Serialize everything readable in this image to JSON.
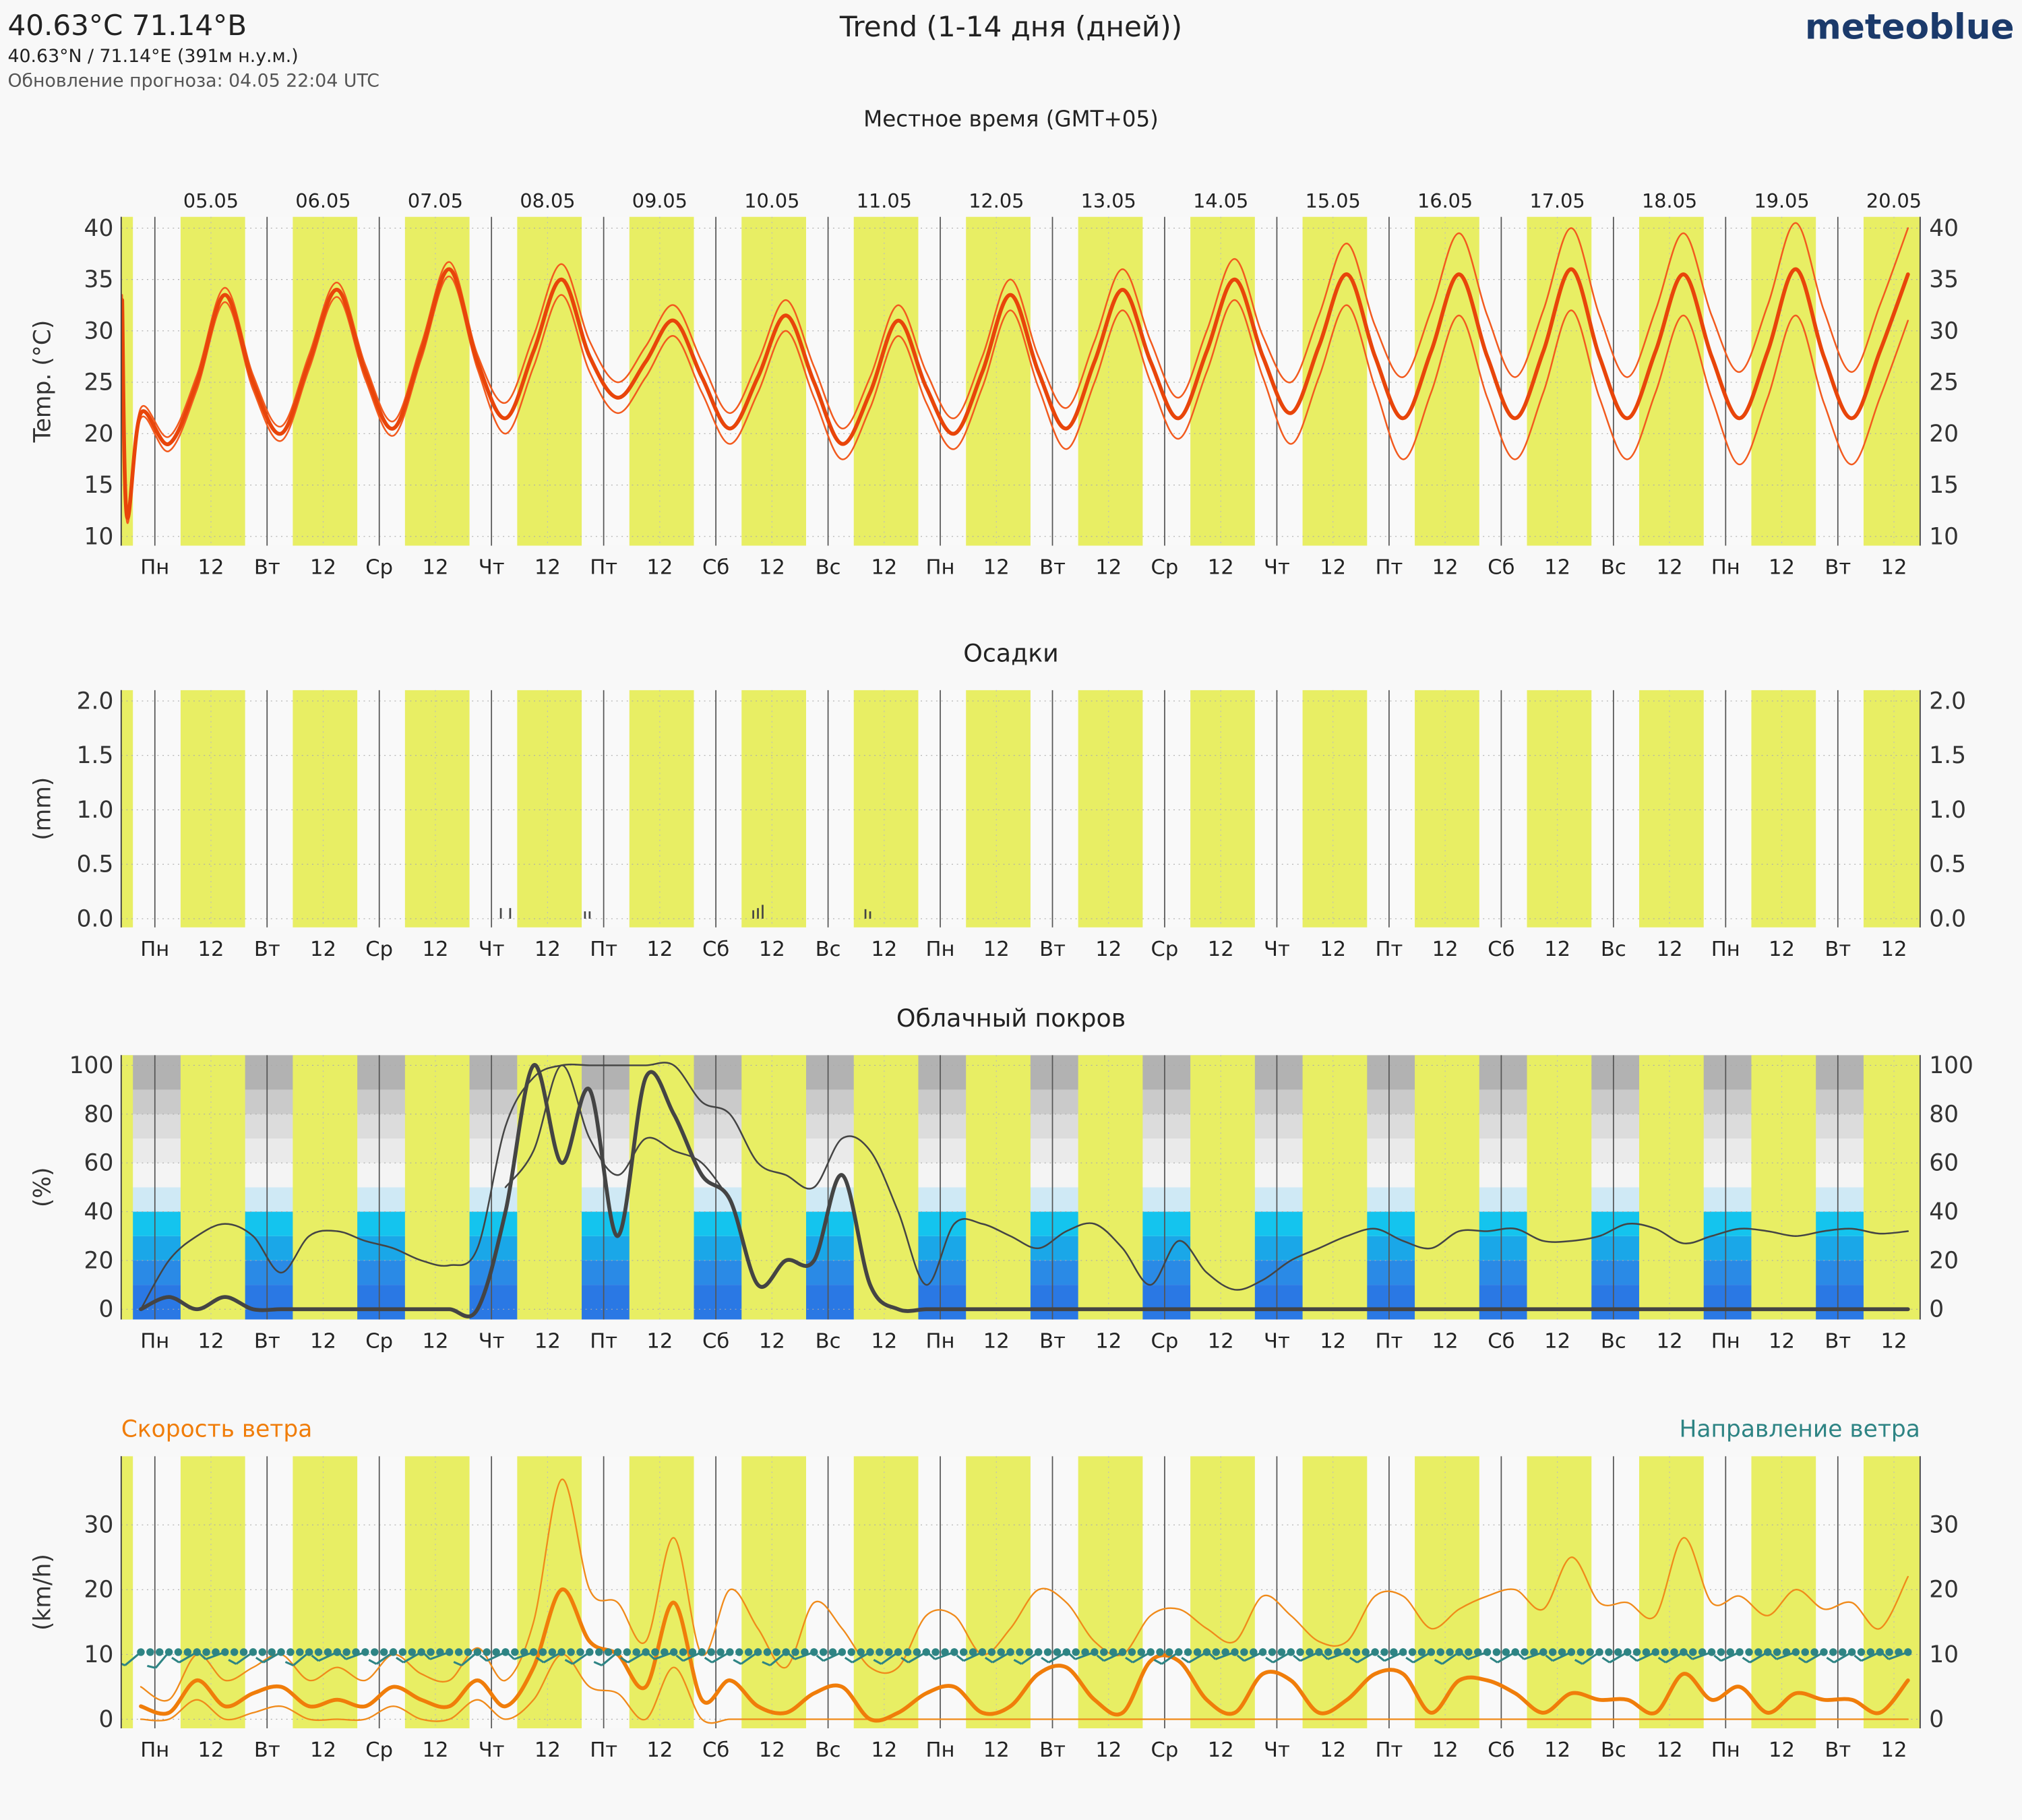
{
  "header": {
    "location": "40.63°C 71.14°B",
    "coords": "40.63°N / 71.14°E (391м н.у.м.)",
    "update": "Обновление прогноза: 04.05 22:04 UTC",
    "title": "Trend (1-14 дня (дней))",
    "brand": "meteoblue"
  },
  "time_axis": {
    "label": "Местное время (GMT+05)",
    "xlim": [
      -7.2,
      377.6
    ],
    "daylight": [
      5.5,
      19.3
    ],
    "day_ticks": [
      {
        "value": 0,
        "label": "Пн"
      },
      {
        "value": 24,
        "label": "Вт"
      },
      {
        "value": 48,
        "label": "Ср"
      },
      {
        "value": 72,
        "label": "Чт"
      },
      {
        "value": 96,
        "label": "Пт"
      },
      {
        "value": 120,
        "label": "Сб"
      },
      {
        "value": 144,
        "label": "Вс"
      },
      {
        "value": 168,
        "label": "Пн"
      },
      {
        "value": 192,
        "label": "Вт"
      },
      {
        "value": 216,
        "label": "Ср"
      },
      {
        "value": 240,
        "label": "Чт"
      },
      {
        "value": 264,
        "label": "Пт"
      },
      {
        "value": 288,
        "label": "Сб"
      },
      {
        "value": 312,
        "label": "Вс"
      },
      {
        "value": 336,
        "label": "Пн"
      },
      {
        "value": 360,
        "label": "Вт"
      }
    ],
    "noon_ticks": [
      12,
      {
        "value": 36,
        "label": "12"
      },
      {
        "value": 60,
        "label": "12"
      },
      {
        "value": 84,
        "label": "12"
      },
      {
        "value": 108,
        "label": "12"
      },
      {
        "value": 132,
        "label": "12"
      },
      {
        "value": 156,
        "label": "12"
      },
      {
        "value": 180,
        "label": "12"
      },
      {
        "value": 204,
        "label": "12"
      },
      {
        "value": 228,
        "label": "12"
      },
      {
        "value": 252,
        "label": "12"
      },
      {
        "value": 276,
        "label": "12"
      },
      {
        "value": 300,
        "label": "12"
      },
      {
        "value": 324,
        "label": "12"
      },
      {
        "value": 348,
        "label": "12"
      },
      {
        "value": 372,
        "label": "12"
      }
    ],
    "date_ticks": [
      {
        "value": 12,
        "label": "05.05"
      },
      {
        "value": 36,
        "label": "06.05"
      },
      {
        "value": 60,
        "label": "07.05"
      },
      {
        "value": 84,
        "label": "08.05"
      },
      {
        "value": 108,
        "label": "09.05"
      },
      {
        "value": 132,
        "label": "10.05"
      },
      {
        "value": 156,
        "label": "11.05"
      },
      {
        "value": 180,
        "label": "12.05"
      },
      {
        "value": 204,
        "label": "13.05"
      },
      {
        "value": 228,
        "label": "14.05"
      },
      {
        "value": 252,
        "label": "15.05"
      },
      {
        "value": 276,
        "label": "16.05"
      },
      {
        "value": 300,
        "label": "17.05"
      },
      {
        "value": 324,
        "label": "18.05"
      },
      {
        "value": 348,
        "label": "19.05"
      },
      {
        "value": 372,
        "label": "20.05"
      }
    ]
  },
  "chart_data": [
    {
      "type": "line",
      "ylabel": "Temp. (°C)",
      "ylim": [
        9.1,
        41.1
      ],
      "yticks": [
        10,
        15,
        20,
        25,
        30,
        35,
        40
      ],
      "grid": true,
      "x": [
        -7,
        -6,
        -3,
        3,
        9,
        15,
        21,
        27,
        33,
        39,
        45,
        51,
        57,
        63,
        69,
        75,
        81,
        87,
        93,
        99,
        105,
        111,
        117,
        123,
        129,
        135,
        141,
        147,
        153,
        159,
        165,
        171,
        177,
        183,
        189,
        195,
        201,
        207,
        213,
        219,
        225,
        231,
        237,
        243,
        249,
        255,
        261,
        267,
        273,
        279,
        285,
        291,
        297,
        303,
        309,
        315,
        321,
        327,
        333,
        339,
        345,
        351,
        357,
        363,
        369,
        375
      ],
      "series": [
        {
          "color": "#f25a1e",
          "line_width": 1.3,
          "values": [
            33.5,
            12.5,
            22.5,
            19.7,
            25.7,
            34.2,
            25.7,
            20.7,
            27.7,
            34.7,
            26.7,
            21.2,
            28.7,
            36.7,
            27.7,
            23,
            29.5,
            36.5,
            29,
            25,
            28.5,
            32.5,
            27,
            22,
            27,
            33,
            26.5,
            20.5,
            25.5,
            32.5,
            26,
            21.5,
            27.5,
            35,
            27.5,
            22.5,
            29,
            36,
            29,
            23.5,
            30,
            37,
            29.5,
            25,
            31.5,
            38.5,
            30.5,
            25.5,
            32,
            39.5,
            31.5,
            25.5,
            32,
            40,
            31.5,
            25.5,
            32,
            39.5,
            31.5,
            26,
            32.5,
            40.5,
            32,
            26,
            32.5,
            40
          ]
        },
        {
          "color": "#f25a1e",
          "line_width": 1.3,
          "values": [
            32.5,
            11.5,
            21.5,
            18.3,
            24.3,
            32.8,
            24.3,
            19.3,
            26.3,
            33.3,
            25.3,
            19.8,
            27.3,
            35.3,
            26.3,
            20,
            26.5,
            33.5,
            26,
            22,
            25.5,
            29.5,
            24,
            19,
            24,
            30,
            23.5,
            17.5,
            22.5,
            29.5,
            23,
            18.5,
            24.5,
            32,
            24.5,
            18.5,
            25,
            32,
            25,
            19.5,
            26,
            33,
            25.5,
            19,
            25.5,
            32.5,
            24.5,
            17.5,
            24,
            31.5,
            23.5,
            17.5,
            24,
            32,
            23.5,
            17.5,
            24,
            31.5,
            23.5,
            17,
            23.5,
            31.5,
            23,
            17,
            23.5,
            31
          ]
        },
        {
          "color": "#e8450a",
          "line_width": 3,
          "values": [
            33,
            12,
            22,
            19,
            25,
            33.5,
            25,
            20,
            27,
            34,
            26,
            20.5,
            28,
            36,
            27,
            21.5,
            28,
            35,
            27.5,
            23.5,
            27,
            31,
            25.5,
            20.5,
            25.5,
            31.5,
            25,
            19,
            24,
            31,
            24.5,
            20,
            26,
            33.5,
            26,
            20.5,
            27,
            34,
            27,
            21.5,
            28,
            35,
            27.5,
            22,
            28.5,
            35.5,
            27.5,
            21.5,
            28,
            35.5,
            27.5,
            21.5,
            28,
            36,
            27.5,
            21.5,
            28,
            35.5,
            27.5,
            21.5,
            28,
            36,
            27.5,
            21.5,
            28,
            35.5
          ]
        }
      ]
    },
    {
      "type": "bar",
      "title": "Осадки",
      "ylabel": "(mm)",
      "ylim": [
        -0.08,
        2.1
      ],
      "yticks": [
        {
          "value": 0,
          "label": "0.0"
        },
        0.5,
        {
          "value": 1,
          "label": "1.0"
        },
        1.5,
        {
          "value": 2,
          "label": "2.0"
        }
      ],
      "grid": true,
      "color": "#444444",
      "x": [
        74,
        76,
        92,
        93,
        128,
        129,
        130,
        152,
        153
      ],
      "values": [
        0.05,
        0.05,
        0.02,
        0.02,
        0.03,
        0.05,
        0.08,
        0.04,
        0.02
      ]
    },
    {
      "type": "line",
      "title": "Облачный покров",
      "ylabel": "(%)",
      "ylim": [
        -4.2,
        104.2
      ],
      "yticks": [
        0,
        20,
        40,
        60,
        80,
        100
      ],
      "grid": true,
      "x": [
        -3,
        3,
        9,
        15,
        21,
        27,
        33,
        39,
        45,
        51,
        57,
        63,
        69,
        75,
        81,
        87,
        93,
        99,
        105,
        111,
        117,
        123,
        129,
        135,
        141,
        147,
        153,
        159,
        165,
        171,
        177,
        183,
        189,
        195,
        201,
        207,
        213,
        219,
        225,
        231,
        237,
        243,
        249,
        255,
        261,
        267,
        273,
        279,
        285,
        291,
        297,
        303,
        309,
        315,
        321,
        327,
        333,
        339,
        345,
        351,
        357,
        363,
        369,
        375
      ],
      "series": [
        {
          "color": "#444444",
          "line_width": 1.3,
          "values": [
            0,
            20,
            30,
            35,
            30,
            15,
            30,
            32,
            28,
            25,
            20,
            18,
            25,
            75,
            95,
            100,
            100,
            100,
            100,
            100,
            85,
            80,
            60,
            55,
            50,
            70,
            65,
            40,
            10,
            35,
            35,
            30,
            25,
            32,
            35,
            25,
            10,
            28,
            15,
            8,
            12,
            20,
            25,
            30,
            33,
            28,
            25,
            32,
            32,
            33,
            28,
            28,
            30,
            35,
            33,
            27,
            30,
            33,
            32,
            30,
            32,
            33,
            31,
            32
          ]
        },
        {
          "color": "#444444",
          "line_width": 1.3,
          "values": [
            null,
            null,
            null,
            null,
            null,
            null,
            null,
            null,
            null,
            null,
            null,
            null,
            null,
            50,
            65,
            100,
            70,
            55,
            70,
            65,
            60,
            45,
            null,
            null,
            null,
            null,
            null,
            null,
            null,
            null,
            null,
            null,
            null,
            null,
            null,
            null,
            null,
            null,
            null,
            null,
            null,
            null,
            null,
            null,
            null,
            null,
            null,
            null,
            null,
            null,
            null,
            null,
            null,
            null,
            null,
            null,
            null,
            null,
            null,
            null,
            null,
            null,
            null,
            null
          ]
        },
        {
          "color": "#444444",
          "line_width": 3,
          "values": [
            0,
            5,
            0,
            5,
            0,
            0,
            0,
            0,
            0,
            0,
            0,
            0,
            0,
            40,
            100,
            60,
            90,
            30,
            95,
            80,
            55,
            45,
            10,
            20,
            20,
            55,
            10,
            0,
            0,
            0,
            0,
            0,
            0,
            0,
            0,
            0,
            0,
            0,
            0,
            0,
            0,
            0,
            0,
            0,
            0,
            0,
            0,
            0,
            0,
            0,
            0,
            0,
            0,
            0,
            0,
            0,
            0,
            0,
            0,
            0,
            0,
            0,
            0,
            0
          ]
        }
      ]
    },
    {
      "type": "line",
      "speed_label": "Скорость ветра",
      "direction_label": "Направление ветра",
      "ylabel": "(km/h)",
      "ylim": [
        -1.4,
        40.6
      ],
      "yticks": [
        0,
        10,
        20,
        30
      ],
      "grid": true,
      "x": [
        -3,
        3,
        9,
        15,
        21,
        27,
        33,
        39,
        45,
        51,
        57,
        63,
        69,
        75,
        81,
        87,
        93,
        99,
        105,
        111,
        117,
        123,
        129,
        135,
        141,
        147,
        153,
        159,
        165,
        171,
        177,
        183,
        189,
        195,
        201,
        207,
        213,
        219,
        225,
        231,
        237,
        243,
        249,
        255,
        261,
        267,
        273,
        279,
        285,
        291,
        297,
        303,
        309,
        315,
        321,
        327,
        333,
        339,
        345,
        351,
        357,
        363,
        369,
        375
      ],
      "series": [
        {
          "color": "#f08a1a",
          "line_width": 1.2,
          "values": [
            5,
            3,
            10,
            6,
            8,
            10,
            6,
            8,
            6,
            10,
            7,
            6,
            11,
            6,
            15,
            37,
            20,
            18,
            12,
            28,
            10,
            20,
            14,
            8,
            18,
            14,
            8,
            8,
            16,
            16,
            10,
            14,
            20,
            18,
            12,
            10,
            16,
            17,
            14,
            12,
            19,
            16,
            12,
            12,
            19,
            19,
            14,
            17,
            19,
            20,
            17,
            25,
            18,
            18,
            16,
            28,
            18,
            19,
            16,
            20,
            17,
            18,
            14,
            22
          ]
        },
        {
          "color": "#f08a1a",
          "line_width": 1.2,
          "values": [
            0,
            0,
            3,
            0,
            1,
            2,
            0,
            0,
            0,
            2,
            0,
            0,
            3,
            0,
            3,
            10,
            5,
            4,
            0,
            8,
            0,
            0,
            0,
            0,
            0,
            0,
            0,
            0,
            0,
            0,
            0,
            0,
            0,
            0,
            0,
            0,
            0,
            0,
            0,
            0,
            0,
            0,
            0,
            0,
            0,
            0,
            0,
            0,
            0,
            0,
            0,
            0,
            0,
            0,
            0,
            0,
            0,
            0,
            0,
            0,
            0,
            0,
            0,
            0
          ]
        },
        {
          "color": "#f07d0a",
          "line_width": 3,
          "values": [
            2,
            1,
            6,
            2,
            4,
            5,
            2,
            3,
            2,
            5,
            3,
            2,
            6,
            2,
            8,
            20,
            12,
            10,
            5,
            18,
            3,
            6,
            2,
            1,
            4,
            5,
            0,
            1,
            4,
            5,
            1,
            2,
            7,
            8,
            3,
            1,
            9,
            9,
            3,
            1,
            7,
            6,
            1,
            3,
            7,
            7,
            1,
            6,
            6,
            4,
            1,
            4,
            3,
            3,
            1,
            7,
            3,
            5,
            1,
            4,
            3,
            3,
            1,
            6
          ]
        }
      ],
      "direction": {
        "color": "#2e8484",
        "values": [
          230,
          220,
          240,
          250,
          235,
          240,
          230,
          245,
          250,
          235,
          240,
          250,
          230,
          245,
          250,
          240,
          235,
          230,
          240,
          250,
          245,
          240,
          235,
          230,
          250,
          245,
          240,
          235,
          240,
          250,
          245,
          240,
          235,
          240,
          250,
          245,
          240,
          235,
          240,
          250,
          245,
          240,
          245,
          250,
          240,
          245,
          240,
          235,
          250,
          240,
          250,
          245,
          235,
          240,
          245,
          240,
          250,
          245,
          240,
          250,
          240,
          240,
          245,
          250
        ]
      }
    }
  ]
}
